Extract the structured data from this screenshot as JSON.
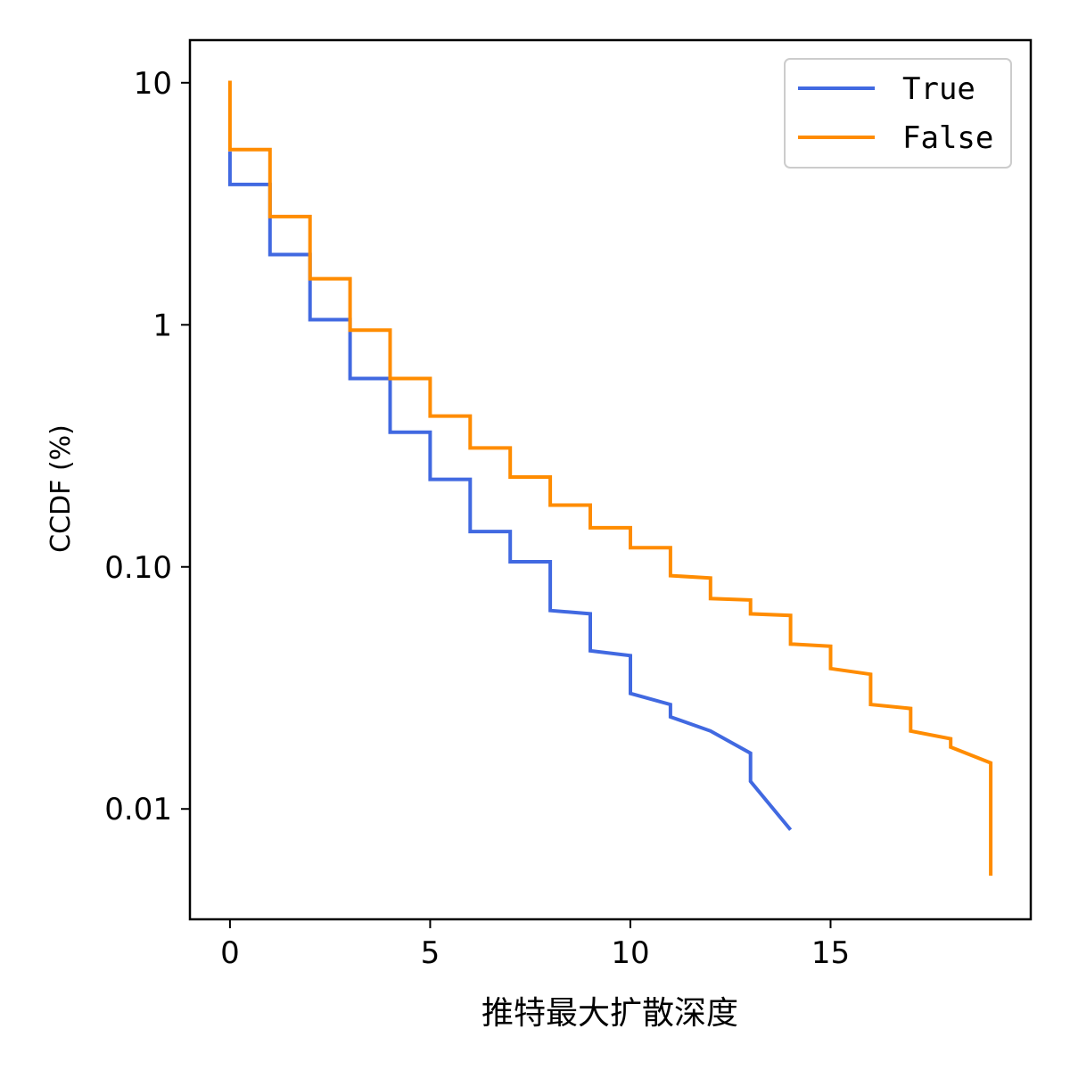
{
  "chart_data": {
    "type": "line",
    "xlabel": "推特最大扩散深度",
    "ylabel": "CCDF (%)",
    "xlim": [
      -1,
      20
    ],
    "ylim": [
      0.0035,
      15
    ],
    "y_scale": "log",
    "xticks": [
      0,
      5,
      10,
      15
    ],
    "xtick_labels": [
      "0",
      "5",
      "10",
      "15"
    ],
    "yticks": [
      0.01,
      0.1,
      1,
      10
    ],
    "ytick_labels": [
      "0.01",
      "0.10",
      "1",
      "10"
    ],
    "grid": false,
    "legend_position": "top-right",
    "series": [
      {
        "name": "True",
        "color": "#4169e1",
        "points": [
          [
            0,
            5.2
          ],
          [
            0,
            3.8
          ],
          [
            1,
            3.8
          ],
          [
            1,
            1.95
          ],
          [
            2,
            1.95
          ],
          [
            2,
            1.05
          ],
          [
            3,
            1.05
          ],
          [
            3,
            0.6
          ],
          [
            4,
            0.6
          ],
          [
            4,
            0.36
          ],
          [
            5,
            0.36
          ],
          [
            5,
            0.23
          ],
          [
            6,
            0.23
          ],
          [
            6,
            0.14
          ],
          [
            7,
            0.14
          ],
          [
            7,
            0.105
          ],
          [
            8,
            0.105
          ],
          [
            8,
            0.066
          ],
          [
            9,
            0.064
          ],
          [
            9,
            0.045
          ],
          [
            10,
            0.043
          ],
          [
            10,
            0.03
          ],
          [
            11,
            0.027
          ],
          [
            11,
            0.024
          ],
          [
            12,
            0.021
          ],
          [
            13,
            0.017
          ],
          [
            13,
            0.013
          ],
          [
            14,
            0.0082
          ]
        ]
      },
      {
        "name": "False",
        "color": "#ff8c00",
        "points": [
          [
            0,
            10.2
          ],
          [
            0,
            5.3
          ],
          [
            1,
            5.3
          ],
          [
            1,
            2.8
          ],
          [
            2,
            2.8
          ],
          [
            2,
            1.55
          ],
          [
            3,
            1.55
          ],
          [
            3,
            0.95
          ],
          [
            4,
            0.95
          ],
          [
            4,
            0.6
          ],
          [
            5,
            0.6
          ],
          [
            5,
            0.42
          ],
          [
            6,
            0.42
          ],
          [
            6,
            0.31
          ],
          [
            7,
            0.31
          ],
          [
            7,
            0.235
          ],
          [
            8,
            0.235
          ],
          [
            8,
            0.18
          ],
          [
            9,
            0.18
          ],
          [
            9,
            0.145
          ],
          [
            10,
            0.145
          ],
          [
            10,
            0.12
          ],
          [
            11,
            0.12
          ],
          [
            11,
            0.092
          ],
          [
            12,
            0.09
          ],
          [
            12,
            0.074
          ],
          [
            13,
            0.073
          ],
          [
            13,
            0.064
          ],
          [
            14,
            0.063
          ],
          [
            14,
            0.048
          ],
          [
            15,
            0.047
          ],
          [
            15,
            0.038
          ],
          [
            16,
            0.036
          ],
          [
            16,
            0.027
          ],
          [
            17,
            0.026
          ],
          [
            17,
            0.021
          ],
          [
            18,
            0.0195
          ],
          [
            18,
            0.018
          ],
          [
            19,
            0.0155
          ],
          [
            19,
            0.0053
          ]
        ]
      }
    ]
  }
}
